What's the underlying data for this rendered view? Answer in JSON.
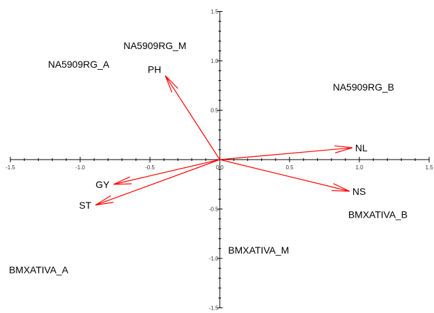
{
  "chart_data": {
    "type": "scatter",
    "title": "",
    "xlabel": "",
    "ylabel": "",
    "xlim": [
      -1.5,
      1.5
    ],
    "ylim": [
      -1.5,
      1.5
    ],
    "grid": false,
    "x_ticks": [
      "-1.5",
      "-1.0",
      "-0.5",
      "0.0",
      "0.5",
      "1.0",
      "1.5"
    ],
    "y_ticks": [
      "1.5",
      "1.0",
      "0.5",
      "0.0",
      "-0.5",
      "-1.0",
      "-1.5"
    ],
    "x_tick_values": [
      -1.5,
      -1.0,
      -0.5,
      0.0,
      0.5,
      1.0,
      1.5
    ],
    "y_tick_values": [
      1.5,
      1.0,
      0.5,
      0.0,
      -0.5,
      -1.0,
      -1.5
    ],
    "vectors": [
      {
        "name": "PH",
        "x": -0.39,
        "y": 0.85
      },
      {
        "name": "NL",
        "x": 0.95,
        "y": 0.12
      },
      {
        "name": "NS",
        "x": 0.93,
        "y": -0.32
      },
      {
        "name": "GY",
        "x": -0.76,
        "y": -0.25
      },
      {
        "name": "ST",
        "x": -0.89,
        "y": -0.46
      }
    ],
    "points": [
      {
        "name": "NA5909RG_M",
        "x": -0.69,
        "y": 1.12
      },
      {
        "name": "NA5909RG_A",
        "x": -1.23,
        "y": 0.93
      },
      {
        "name": "NA5909RG_B",
        "x": 0.81,
        "y": 0.7
      },
      {
        "name": "BMXATIVA_B",
        "x": 0.92,
        "y": -0.59
      },
      {
        "name": "BMXATIVA_M",
        "x": 0.06,
        "y": -0.95
      },
      {
        "name": "BMXATIVA_A",
        "x": -1.51,
        "y": -1.15
      }
    ],
    "colors": {
      "vector": "#ff0000",
      "axis": "#000000",
      "text": "#000000"
    }
  }
}
